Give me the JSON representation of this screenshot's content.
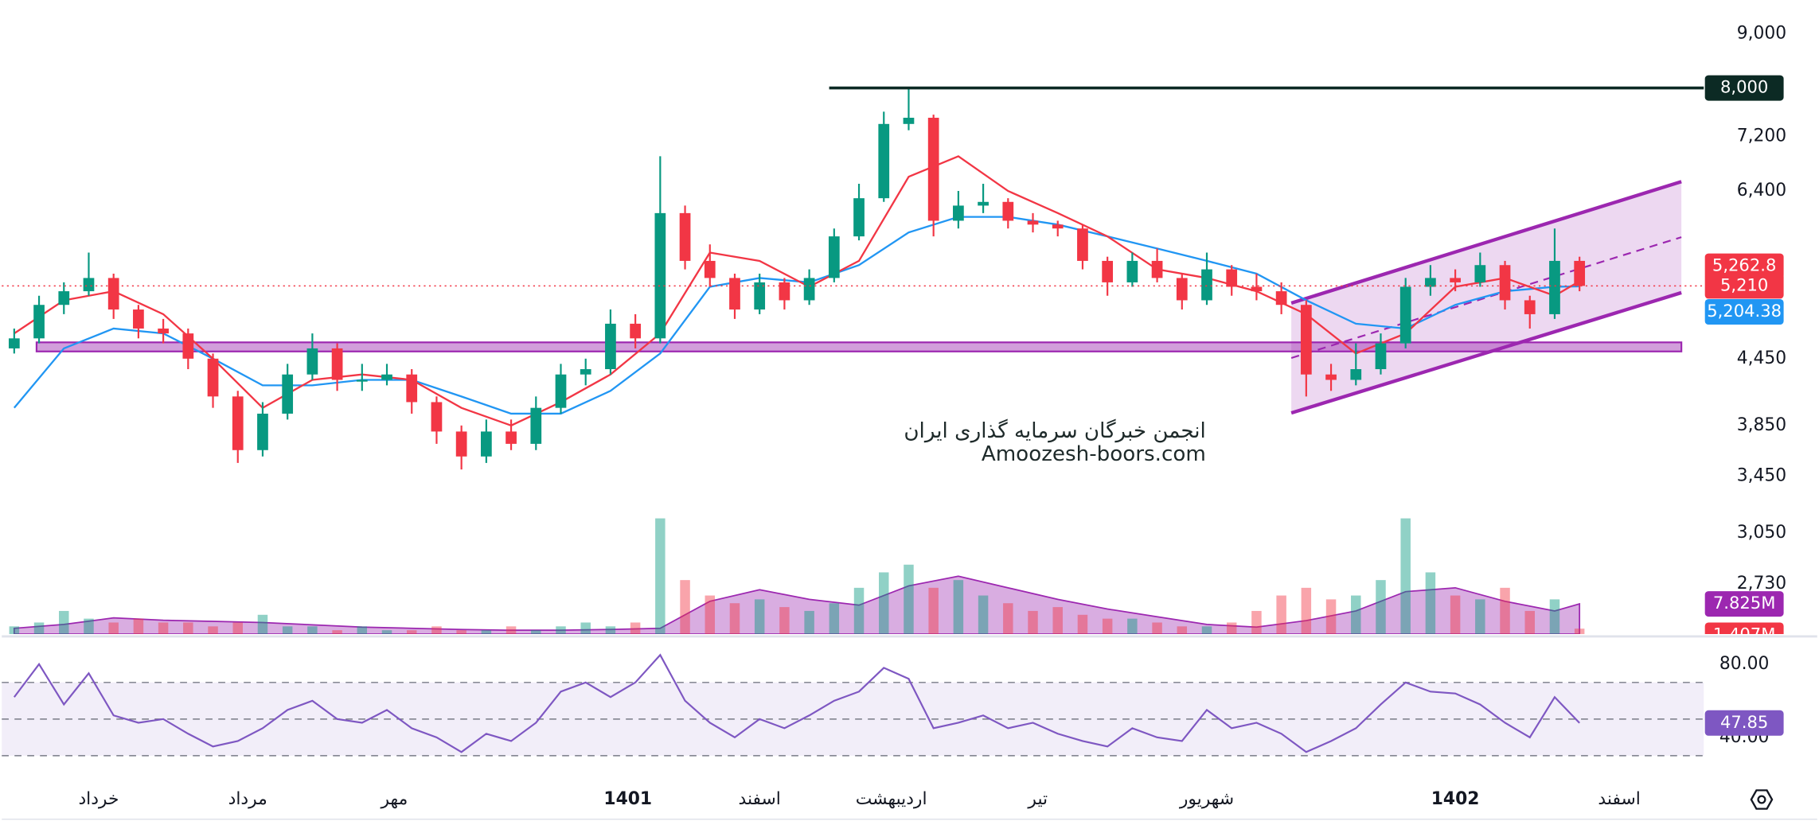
{
  "chart_data": {
    "type": "candlestick",
    "log": true,
    "ylim": [
      2450,
      9680
    ],
    "yticks": [
      {
        "value": 9000,
        "label": "9,000"
      },
      {
        "value": 7200,
        "label": "7,200"
      },
      {
        "value": 6400,
        "label": "6,400"
      },
      {
        "value": 4450,
        "label": "4,450"
      },
      {
        "value": 3850,
        "label": "3,850"
      },
      {
        "value": 3450,
        "label": "3,450"
      },
      {
        "value": 3050,
        "label": "3,050"
      },
      {
        "value": 2730,
        "label": "2,730"
      }
    ],
    "xlim": [
      -0.5,
      68
    ],
    "xticks": [
      {
        "value": 3.4,
        "label": "خرداد"
      },
      {
        "value": 9.4,
        "label": "مرداد"
      },
      {
        "value": 15.3,
        "label": "مهر"
      },
      {
        "value": 24.7,
        "label": "1401",
        "bold": true
      },
      {
        "value": 30,
        "label": "اسفند"
      },
      {
        "value": 35.3,
        "label": "اردیبهشت"
      },
      {
        "value": 41.2,
        "label": "تیر"
      },
      {
        "value": 48,
        "label": "شهریور"
      },
      {
        "value": 58,
        "label": "1402",
        "bold": true
      },
      {
        "value": 64.6,
        "label": "اسفند"
      }
    ],
    "up_color": "#089981",
    "down_color": "#f23645",
    "ohlc": [
      [
        4550,
        4750,
        4500,
        4650
      ],
      [
        4650,
        5100,
        4600,
        5000
      ],
      [
        5000,
        5250,
        4900,
        5150
      ],
      [
        5150,
        5600,
        5100,
        5300
      ],
      [
        5300,
        5350,
        4850,
        4950
      ],
      [
        4950,
        5000,
        4650,
        4750
      ],
      [
        4750,
        4850,
        4600,
        4700
      ],
      [
        4700,
        4750,
        4350,
        4450
      ],
      [
        4450,
        4500,
        4000,
        4100
      ],
      [
        4100,
        4150,
        3550,
        3650
      ],
      [
        3650,
        4050,
        3600,
        3950
      ],
      [
        3950,
        4400,
        3900,
        4300
      ],
      [
        4300,
        4700,
        4250,
        4550
      ],
      [
        4550,
        4600,
        4150,
        4250
      ],
      [
        4250,
        4400,
        4150,
        4250
      ],
      [
        4250,
        4400,
        4200,
        4300
      ],
      [
        4300,
        4350,
        3950,
        4050
      ],
      [
        4050,
        4100,
        3700,
        3800
      ],
      [
        3800,
        3850,
        3500,
        3600
      ],
      [
        3600,
        3900,
        3550,
        3800
      ],
      [
        3800,
        3900,
        3650,
        3700
      ],
      [
        3700,
        4100,
        3650,
        4000
      ],
      [
        4000,
        4400,
        3950,
        4300
      ],
      [
        4300,
        4450,
        4200,
        4350
      ],
      [
        4350,
        4950,
        4300,
        4800
      ],
      [
        4800,
        4900,
        4550,
        4650
      ],
      [
        4650,
        6900,
        4600,
        6100
      ],
      [
        6100,
        6200,
        5400,
        5500
      ],
      [
        5500,
        5700,
        5200,
        5300
      ],
      [
        5300,
        5350,
        4850,
        4950
      ],
      [
        4950,
        5350,
        4900,
        5250
      ],
      [
        5250,
        5300,
        4950,
        5050
      ],
      [
        5050,
        5400,
        5000,
        5300
      ],
      [
        5300,
        5900,
        5250,
        5800
      ],
      [
        5800,
        6500,
        5750,
        6300
      ],
      [
        6300,
        7600,
        6250,
        7400
      ],
      [
        7400,
        8000,
        7300,
        7500
      ],
      [
        7500,
        7550,
        5800,
        6000
      ],
      [
        6000,
        6400,
        5900,
        6200
      ],
      [
        6200,
        6500,
        6100,
        6250
      ],
      [
        6250,
        6300,
        5900,
        6000
      ],
      [
        6000,
        6100,
        5850,
        5950
      ],
      [
        5950,
        6000,
        5800,
        5900
      ],
      [
        5900,
        5950,
        5400,
        5500
      ],
      [
        5500,
        5550,
        5100,
        5250
      ],
      [
        5250,
        5600,
        5200,
        5500
      ],
      [
        5500,
        5650,
        5250,
        5300
      ],
      [
        5300,
        5350,
        4950,
        5050
      ],
      [
        5050,
        5600,
        5000,
        5400
      ],
      [
        5400,
        5450,
        5100,
        5200
      ],
      [
        5200,
        5350,
        5050,
        5150
      ],
      [
        5150,
        5250,
        4900,
        5000
      ],
      [
        5000,
        5050,
        4100,
        4300
      ],
      [
        4300,
        4400,
        4150,
        4250
      ],
      [
        4250,
        4600,
        4200,
        4350
      ],
      [
        4350,
        4700,
        4300,
        4600
      ],
      [
        4600,
        5300,
        4550,
        5200
      ],
      [
        5200,
        5450,
        5100,
        5300
      ],
      [
        5300,
        5400,
        5150,
        5250
      ],
      [
        5250,
        5600,
        5200,
        5450
      ],
      [
        5450,
        5500,
        4950,
        5050
      ],
      [
        5050,
        5100,
        4750,
        4900
      ],
      [
        4900,
        5900,
        4850,
        5500
      ],
      [
        5500,
        5550,
        5150,
        5210
      ]
    ],
    "last_close_label": "5,210",
    "ma_fast": {
      "color": "#f23645",
      "x": [
        0,
        2,
        4,
        6,
        8,
        10,
        12,
        14,
        16,
        18,
        20,
        22,
        24,
        26,
        28,
        30,
        32,
        34,
        36,
        38,
        40,
        42,
        44,
        46,
        48,
        50,
        52,
        54,
        56,
        58,
        60,
        62,
        63
      ],
      "values": [
        4700,
        5050,
        5150,
        4900,
        4450,
        4000,
        4250,
        4300,
        4250,
        4000,
        3850,
        4050,
        4300,
        4700,
        5600,
        5500,
        5200,
        5500,
        6600,
        6900,
        6400,
        6100,
        5800,
        5400,
        5300,
        5150,
        4900,
        4500,
        4700,
        5200,
        5300,
        5100,
        5262.8
      ],
      "value_label": "5,262.8"
    },
    "ma_slow": {
      "color": "#2196f3",
      "x": [
        0,
        2,
        4,
        6,
        8,
        10,
        12,
        14,
        16,
        18,
        20,
        22,
        24,
        26,
        28,
        30,
        32,
        34,
        36,
        38,
        40,
        42,
        44,
        46,
        48,
        50,
        52,
        54,
        56,
        58,
        60,
        62,
        63
      ],
      "values": [
        4000,
        4550,
        4750,
        4700,
        4450,
        4200,
        4200,
        4250,
        4250,
        4100,
        3950,
        3950,
        4150,
        4500,
        5200,
        5300,
        5250,
        5450,
        5850,
        6050,
        6050,
        5950,
        5800,
        5650,
        5500,
        5350,
        5050,
        4800,
        4750,
        5000,
        5150,
        5200,
        5204.38
      ],
      "value_label": "5,204.38"
    },
    "hline": {
      "x_start": 32.8,
      "value": 8000,
      "label": "8,000",
      "color": "#0c2a24"
    },
    "zone": {
      "x": [
        0.9,
        67.1
      ],
      "top": 4610,
      "bottom": 4520,
      "color": "#9c27b0"
    },
    "channel": {
      "x": [
        51.4,
        67.1
      ],
      "upper": [
        5020,
        6530
      ],
      "lower": [
        3956,
        5134
      ],
      "color": "#9c27b0"
    },
    "volume": {
      "vlim": [
        0,
        42
      ],
      "values": [
        2,
        3,
        6,
        4,
        3,
        4,
        3,
        3,
        2,
        3,
        5,
        2,
        2,
        1,
        2,
        1,
        1,
        2,
        1,
        1,
        2,
        1,
        2,
        3,
        2,
        3,
        30,
        14,
        10,
        8,
        9,
        7,
        6,
        8,
        12,
        16,
        18,
        12,
        14,
        10,
        8,
        6,
        7,
        5,
        4,
        4,
        3,
        2,
        2,
        3,
        6,
        10,
        12,
        9,
        10,
        14,
        30,
        16,
        10,
        9,
        12,
        6,
        9,
        1.407
      ],
      "value_label": "1.407M"
    },
    "volume_ma": {
      "color": "#9c27b0",
      "x": [
        0,
        2,
        4,
        6,
        8,
        10,
        12,
        14,
        16,
        18,
        20,
        22,
        24,
        26,
        28,
        30,
        32,
        34,
        36,
        38,
        40,
        42,
        44,
        46,
        48,
        50,
        52,
        54,
        56,
        58,
        60,
        62,
        63
      ],
      "values": [
        1.5,
        2.5,
        4.2,
        3.6,
        3.3,
        3.0,
        2.4,
        1.8,
        1.5,
        1.2,
        1.0,
        1.0,
        1.2,
        1.5,
        8.5,
        11.5,
        9,
        7.5,
        12.5,
        15,
        12,
        9,
        6.5,
        4.5,
        2.5,
        1.8,
        3.5,
        6,
        11,
        12,
        8.5,
        6,
        7.825
      ],
      "value_label": "7.825M"
    },
    "rsi": {
      "color": "#7e57c2",
      "ylim": [
        13,
        92
      ],
      "yticks": [
        {
          "value": 80,
          "label": "80.00"
        },
        {
          "value": 40,
          "label": "40.00"
        }
      ],
      "levels": [
        70,
        50,
        30
      ],
      "values": [
        62,
        80,
        58,
        75,
        52,
        48,
        50,
        42,
        35,
        38,
        45,
        55,
        60,
        50,
        48,
        55,
        45,
        40,
        32,
        42,
        38,
        48,
        65,
        70,
        62,
        70,
        85,
        60,
        48,
        40,
        50,
        45,
        52,
        60,
        65,
        78,
        72,
        45,
        48,
        52,
        45,
        48,
        42,
        38,
        35,
        45,
        40,
        38,
        55,
        45,
        48,
        42,
        32,
        38,
        45,
        58,
        70,
        65,
        64,
        58,
        48,
        40,
        62,
        47.85
      ],
      "value_label": "47.85"
    },
    "watermark": [
      "انجمن خبرگان سرمایه گذاری ایران",
      "Amoozesh-boors.com"
    ]
  }
}
